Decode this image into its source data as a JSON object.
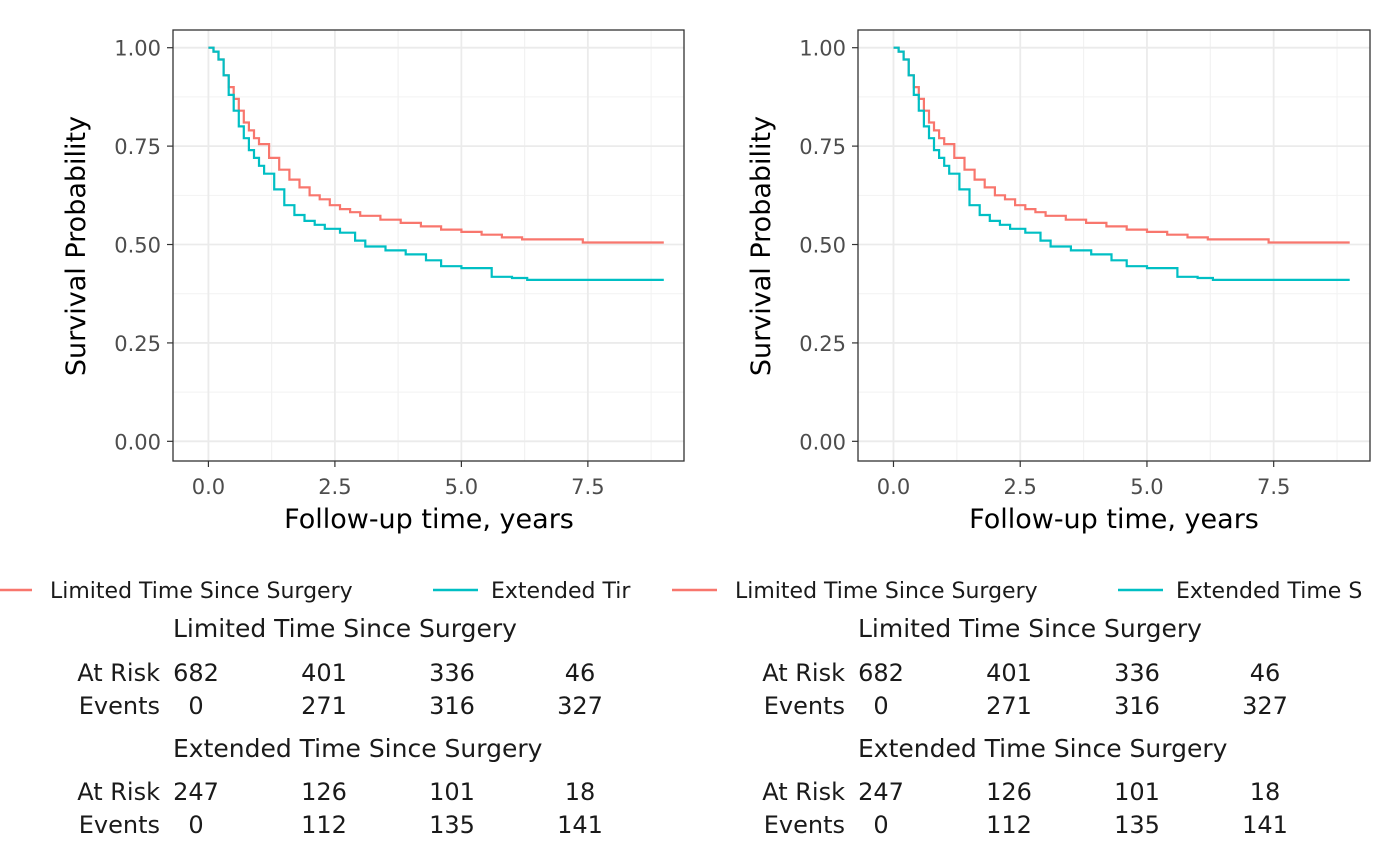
{
  "chart_data": [
    {
      "type": "line",
      "xlabel": "Follow-up time, years",
      "ylabel": "Survival Probability",
      "xlim": [
        -0.7,
        9.4
      ],
      "ylim": [
        -0.05,
        1.045
      ],
      "xticks": [
        0,
        2.5,
        5,
        7.5
      ],
      "xtick_labels": [
        "0.0",
        "2.5",
        "5.0",
        "7.5"
      ],
      "yticks": [
        0,
        0.25,
        0.5,
        0.75,
        1
      ],
      "ytick_labels": [
        "0.00",
        "0.25",
        "0.50",
        "0.75",
        "1.00"
      ],
      "grid": true,
      "legend_position": "bottom",
      "series": [
        {
          "name": "Limited Time Since Surgery",
          "color": "#F8766D",
          "x": [
            0,
            0.1,
            0.2,
            0.3,
            0.4,
            0.5,
            0.6,
            0.7,
            0.8,
            0.9,
            1.0,
            1.2,
            1.4,
            1.6,
            1.8,
            2.0,
            2.2,
            2.4,
            2.6,
            2.8,
            3.0,
            3.4,
            3.8,
            4.2,
            4.6,
            5.0,
            5.4,
            5.8,
            6.2,
            6.8,
            7.4,
            8.0,
            9.0
          ],
          "y": [
            1.0,
            0.99,
            0.97,
            0.93,
            0.9,
            0.87,
            0.84,
            0.81,
            0.79,
            0.77,
            0.755,
            0.72,
            0.69,
            0.665,
            0.645,
            0.625,
            0.615,
            0.6,
            0.59,
            0.582,
            0.573,
            0.563,
            0.555,
            0.546,
            0.538,
            0.532,
            0.525,
            0.518,
            0.513,
            0.513,
            0.505,
            0.505,
            0.505
          ]
        },
        {
          "name": "Extended Time Since Surgery",
          "color": "#00BFC4",
          "x": [
            0,
            0.1,
            0.2,
            0.3,
            0.4,
            0.5,
            0.6,
            0.7,
            0.8,
            0.9,
            1.0,
            1.1,
            1.3,
            1.5,
            1.7,
            1.9,
            2.1,
            2.3,
            2.6,
            2.9,
            3.1,
            3.5,
            3.9,
            4.3,
            4.6,
            5.0,
            5.4,
            5.6,
            6.0,
            6.3,
            7.0,
            8.0,
            9.0
          ],
          "y": [
            1.0,
            0.99,
            0.97,
            0.93,
            0.88,
            0.84,
            0.8,
            0.77,
            0.74,
            0.72,
            0.7,
            0.68,
            0.64,
            0.6,
            0.575,
            0.56,
            0.55,
            0.54,
            0.53,
            0.51,
            0.495,
            0.485,
            0.475,
            0.46,
            0.445,
            0.44,
            0.44,
            0.418,
            0.415,
            0.41,
            0.41,
            0.41,
            0.41
          ]
        }
      ]
    },
    {
      "type": "line",
      "xlabel": "Follow-up time, years",
      "ylabel": "Survival Probability",
      "xlim": [
        -0.7,
        9.4
      ],
      "ylim": [
        -0.05,
        1.045
      ],
      "xticks": [
        0,
        2.5,
        5,
        7.5
      ],
      "xtick_labels": [
        "0.0",
        "2.5",
        "5.0",
        "7.5"
      ],
      "yticks": [
        0,
        0.25,
        0.5,
        0.75,
        1
      ],
      "ytick_labels": [
        "0.00",
        "0.25",
        "0.50",
        "0.75",
        "1.00"
      ],
      "grid": true,
      "legend_position": "bottom",
      "series": [
        {
          "name": "Limited Time Since Surgery",
          "color": "#F8766D",
          "x": [
            0,
            0.1,
            0.2,
            0.3,
            0.4,
            0.5,
            0.6,
            0.7,
            0.8,
            0.9,
            1.0,
            1.2,
            1.4,
            1.6,
            1.8,
            2.0,
            2.2,
            2.4,
            2.6,
            2.8,
            3.0,
            3.4,
            3.8,
            4.2,
            4.6,
            5.0,
            5.4,
            5.8,
            6.2,
            6.8,
            7.4,
            8.0,
            9.0
          ],
          "y": [
            1.0,
            0.99,
            0.97,
            0.93,
            0.9,
            0.87,
            0.84,
            0.81,
            0.79,
            0.77,
            0.755,
            0.72,
            0.69,
            0.665,
            0.645,
            0.625,
            0.615,
            0.6,
            0.59,
            0.582,
            0.573,
            0.563,
            0.555,
            0.546,
            0.538,
            0.532,
            0.525,
            0.518,
            0.513,
            0.513,
            0.505,
            0.505,
            0.505
          ]
        },
        {
          "name": "Extended Time Since Surgery",
          "color": "#00BFC4",
          "x": [
            0,
            0.1,
            0.2,
            0.3,
            0.4,
            0.5,
            0.6,
            0.7,
            0.8,
            0.9,
            1.0,
            1.1,
            1.3,
            1.5,
            1.7,
            1.9,
            2.1,
            2.3,
            2.6,
            2.9,
            3.1,
            3.5,
            3.9,
            4.3,
            4.6,
            5.0,
            5.4,
            5.6,
            6.0,
            6.3,
            7.0,
            8.0,
            9.0
          ],
          "y": [
            1.0,
            0.99,
            0.97,
            0.93,
            0.88,
            0.84,
            0.8,
            0.77,
            0.74,
            0.72,
            0.7,
            0.68,
            0.64,
            0.6,
            0.575,
            0.56,
            0.55,
            0.54,
            0.53,
            0.51,
            0.495,
            0.485,
            0.475,
            0.46,
            0.445,
            0.44,
            0.44,
            0.418,
            0.415,
            0.41,
            0.41,
            0.41,
            0.41
          ]
        }
      ]
    }
  ],
  "legend_labels": {
    "left": [
      "Limited Time Since Surgery",
      "Extended Tir"
    ],
    "right": [
      "Limited Time Since Surgery",
      "Extended Time S"
    ]
  },
  "risk_tables": [
    [
      {
        "title": "Limited Time Since Surgery",
        "at_risk_label": "At Risk",
        "events_label": "Events",
        "at_risk": [
          "682",
          "401",
          "336",
          "46"
        ],
        "events": [
          "0",
          "271",
          "316",
          "327"
        ]
      },
      {
        "title": "Extended Time Since Surgery",
        "at_risk_label": "At Risk",
        "events_label": "Events",
        "at_risk": [
          "247",
          "126",
          "101",
          "18"
        ],
        "events": [
          "0",
          "112",
          "135",
          "141"
        ]
      }
    ],
    [
      {
        "title": "Limited Time Since Surgery",
        "at_risk_label": "At Risk",
        "events_label": "Events",
        "at_risk": [
          "682",
          "401",
          "336",
          "46"
        ],
        "events": [
          "0",
          "271",
          "316",
          "327"
        ]
      },
      {
        "title": "Extended Time Since Surgery",
        "at_risk_label": "At Risk",
        "events_label": "Events",
        "at_risk": [
          "247",
          "126",
          "101",
          "18"
        ],
        "events": [
          "0",
          "112",
          "135",
          "141"
        ]
      }
    ]
  ]
}
